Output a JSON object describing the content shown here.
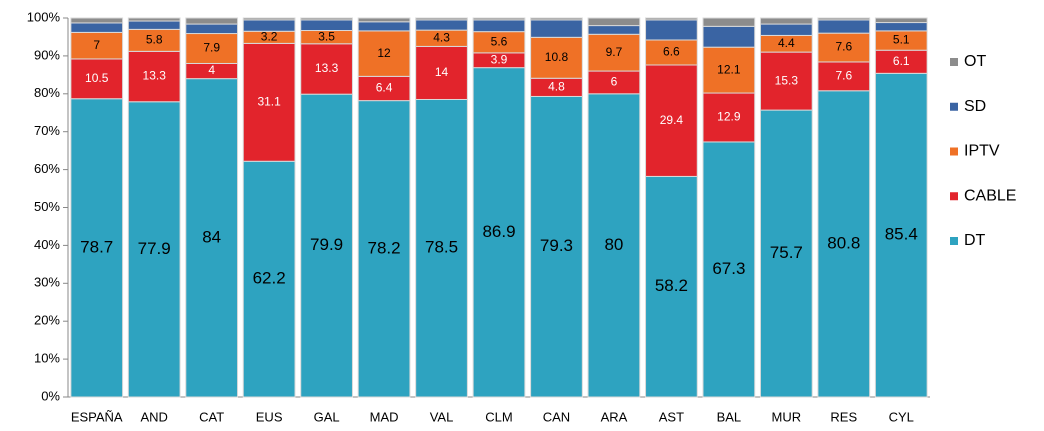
{
  "chart_data": {
    "type": "stacked_bar",
    "categories": [
      "ESPAÑA",
      "AND",
      "CAT",
      "EUS",
      "GAL",
      "MAD",
      "VAL",
      "CLM",
      "CAN",
      "ARA",
      "AST",
      "BAL",
      "MUR",
      "RES",
      "CYL"
    ],
    "series": [
      {
        "name": "DT",
        "color": "#2ea3c0",
        "labels": true,
        "label_color": "#000000",
        "values": [
          78.7,
          77.9,
          84,
          62.2,
          79.9,
          78.2,
          78.5,
          86.9,
          79.3,
          80,
          58.2,
          67.3,
          75.7,
          80.8,
          85.4
        ]
      },
      {
        "name": "CABLE",
        "color": "#e2242c",
        "labels": true,
        "label_color": "#ffffff",
        "values": [
          10.5,
          13.3,
          4,
          31.1,
          13.3,
          6.4,
          14,
          3.9,
          4.8,
          6,
          29.4,
          12.9,
          15.3,
          7.6,
          6.1
        ]
      },
      {
        "name": "IPTV",
        "color": "#ef7126",
        "labels": true,
        "label_color": "#000000",
        "values": [
          7,
          5.8,
          7.9,
          3.2,
          3.5,
          12,
          4.3,
          5.6,
          10.8,
          9.7,
          6.6,
          12.1,
          4.4,
          7.6,
          5.1
        ]
      },
      {
        "name": "SD",
        "color": "#3a64a3",
        "labels": false,
        "values": [
          2.5,
          2.2,
          2.5,
          3,
          2.8,
          2.4,
          2.7,
          3.1,
          4.6,
          2.3,
          5.3,
          5.5,
          3,
          3.5,
          2.2
        ]
      },
      {
        "name": "OT",
        "color": "#8c8c8c",
        "labels": false,
        "values": [
          1.3,
          0.8,
          1.6,
          0.5,
          0.5,
          1,
          0.5,
          0.5,
          0.5,
          2,
          0.5,
          2.2,
          1.6,
          0.5,
          1.2
        ]
      }
    ],
    "ylim": [
      0,
      100
    ],
    "yticks": [
      {
        "value": 0,
        "label": "0%"
      },
      {
        "value": 10,
        "label": "10%"
      },
      {
        "value": 20,
        "label": "20%"
      },
      {
        "value": 30,
        "label": "30%"
      },
      {
        "value": 40,
        "label": "40%"
      },
      {
        "value": 50,
        "label": "50%"
      },
      {
        "value": 60,
        "label": "60%"
      },
      {
        "value": 70,
        "label": "70%"
      },
      {
        "value": 80,
        "label": "80%"
      },
      {
        "value": 90,
        "label": "90%"
      },
      {
        "value": 100,
        "label": "100%"
      }
    ],
    "legend": "right"
  }
}
